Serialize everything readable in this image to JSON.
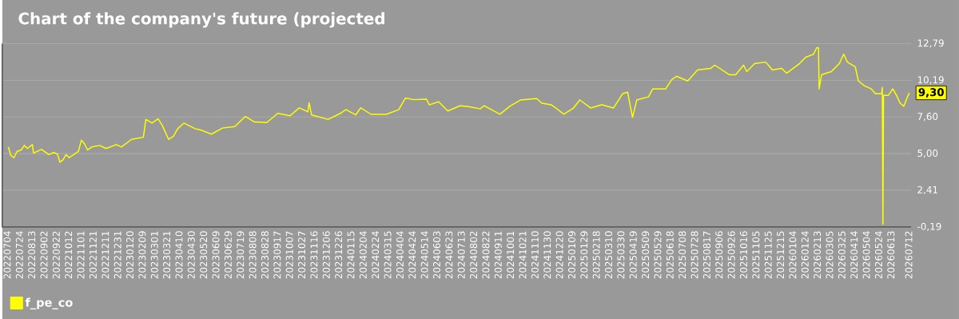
{
  "chart_data": {
    "type": "line",
    "title": "Chart of the company's future (projected",
    "xlim": [
      "2022-06-26",
      "2026-07-16"
    ],
    "ylim": [
      -0.19,
      12.79
    ],
    "yticks": [
      {
        "value": -0.19,
        "label": "-0,19"
      },
      {
        "value": 2.41,
        "label": "2,41"
      },
      {
        "value": 5.0,
        "label": "5,00"
      },
      {
        "value": 7.6,
        "label": "7,60"
      },
      {
        "value": 10.19,
        "label": "10,19"
      },
      {
        "value": 12.79,
        "label": "12,79"
      }
    ],
    "xticks": [
      {
        "value": "2022-07-04",
        "label": "20220704"
      },
      {
        "value": "2022-07-24",
        "label": "20220724"
      },
      {
        "value": "2022-08-13",
        "label": "20220813"
      },
      {
        "value": "2022-09-02",
        "label": "20220902"
      },
      {
        "value": "2022-09-22",
        "label": "20220922"
      },
      {
        "value": "2022-10-12",
        "label": "20221012"
      },
      {
        "value": "2022-11-01",
        "label": "20221101"
      },
      {
        "value": "2022-11-21",
        "label": "20221121"
      },
      {
        "value": "2022-12-11",
        "label": "20221211"
      },
      {
        "value": "2022-12-31",
        "label": "20221231"
      },
      {
        "value": "2023-01-20",
        "label": "20230120"
      },
      {
        "value": "2023-02-09",
        "label": "20230209"
      },
      {
        "value": "2023-03-01",
        "label": "20230301"
      },
      {
        "value": "2023-03-21",
        "label": "20230321"
      },
      {
        "value": "2023-04-10",
        "label": "20230410"
      },
      {
        "value": "2023-04-30",
        "label": "20230430"
      },
      {
        "value": "2023-05-20",
        "label": "20230520"
      },
      {
        "value": "2023-06-09",
        "label": "20230609"
      },
      {
        "value": "2023-06-29",
        "label": "20230629"
      },
      {
        "value": "2023-07-19",
        "label": "20230719"
      },
      {
        "value": "2023-08-08",
        "label": "20230808"
      },
      {
        "value": "2023-08-28",
        "label": "20230828"
      },
      {
        "value": "2023-09-17",
        "label": "20230917"
      },
      {
        "value": "2023-10-07",
        "label": "20231007"
      },
      {
        "value": "2023-10-27",
        "label": "20231027"
      },
      {
        "value": "2023-11-16",
        "label": "20231116"
      },
      {
        "value": "2023-12-06",
        "label": "20231206"
      },
      {
        "value": "2023-12-26",
        "label": "20231226"
      },
      {
        "value": "2024-01-15",
        "label": "20240115"
      },
      {
        "value": "2024-02-04",
        "label": "20240204"
      },
      {
        "value": "2024-02-24",
        "label": "20240224"
      },
      {
        "value": "2024-03-15",
        "label": "20240315"
      },
      {
        "value": "2024-04-04",
        "label": "20240404"
      },
      {
        "value": "2024-04-24",
        "label": "20240424"
      },
      {
        "value": "2024-05-14",
        "label": "20240514"
      },
      {
        "value": "2024-06-03",
        "label": "20240603"
      },
      {
        "value": "2024-06-23",
        "label": "20240623"
      },
      {
        "value": "2024-07-13",
        "label": "20240713"
      },
      {
        "value": "2024-08-02",
        "label": "20240802"
      },
      {
        "value": "2024-08-22",
        "label": "20240822"
      },
      {
        "value": "2024-09-11",
        "label": "20240911"
      },
      {
        "value": "2024-10-01",
        "label": "20241001"
      },
      {
        "value": "2024-10-21",
        "label": "20241021"
      },
      {
        "value": "2024-11-10",
        "label": "20241110"
      },
      {
        "value": "2024-11-30",
        "label": "20241130"
      },
      {
        "value": "2024-12-20",
        "label": "20241220"
      },
      {
        "value": "2025-01-09",
        "label": "20250109"
      },
      {
        "value": "2025-01-29",
        "label": "20250129"
      },
      {
        "value": "2025-02-18",
        "label": "20250218"
      },
      {
        "value": "2025-03-10",
        "label": "20250310"
      },
      {
        "value": "2025-03-30",
        "label": "20250330"
      },
      {
        "value": "2025-04-19",
        "label": "20250419"
      },
      {
        "value": "2025-05-09",
        "label": "20250509"
      },
      {
        "value": "2025-05-29",
        "label": "20250529"
      },
      {
        "value": "2025-06-18",
        "label": "20250618"
      },
      {
        "value": "2025-07-08",
        "label": "20250708"
      },
      {
        "value": "2025-07-28",
        "label": "20250728"
      },
      {
        "value": "2025-08-17",
        "label": "20250817"
      },
      {
        "value": "2025-09-06",
        "label": "20250906"
      },
      {
        "value": "2025-09-26",
        "label": "20250926"
      },
      {
        "value": "2025-10-16",
        "label": "20251016"
      },
      {
        "value": "2025-11-05",
        "label": "20251105"
      },
      {
        "value": "2025-11-25",
        "label": "20251125"
      },
      {
        "value": "2025-12-15",
        "label": "20251215"
      },
      {
        "value": "2026-01-04",
        "label": "20260104"
      },
      {
        "value": "2026-01-24",
        "label": "20260124"
      },
      {
        "value": "2026-02-13",
        "label": "20260213"
      },
      {
        "value": "2026-03-05",
        "label": "20260305"
      },
      {
        "value": "2026-03-25",
        "label": "20260325"
      },
      {
        "value": "2026-04-14",
        "label": "20260414"
      },
      {
        "value": "2026-05-04",
        "label": "20260504"
      },
      {
        "value": "2026-05-24",
        "label": "20260524"
      },
      {
        "value": "2026-06-13",
        "label": "20260613"
      },
      {
        "value": "2026-07-12",
        "label": "20260712"
      }
    ],
    "grid": "y",
    "legend": "bottom left",
    "annotations": [
      {
        "text": "9,30",
        "x": "2026-07-13",
        "y": 9.3
      }
    ],
    "series": [
      {
        "name": "f_pe_co",
        "color": "#ffff00",
        "x": [
          "2022-07-06",
          "2022-07-10",
          "2022-07-15",
          "2022-07-20",
          "2022-07-27",
          "2022-08-01",
          "2022-08-06",
          "2022-08-14",
          "2022-08-16",
          "2022-08-29",
          "2022-09-10",
          "2022-09-18",
          "2022-09-24",
          "2022-09-28",
          "2022-10-03",
          "2022-10-08",
          "2022-10-13",
          "2022-10-28",
          "2022-11-02",
          "2022-11-07",
          "2022-11-12",
          "2022-11-19",
          "2022-12-02",
          "2022-12-12",
          "2022-12-29",
          "2023-01-06",
          "2023-01-23",
          "2023-02-11",
          "2023-02-15",
          "2023-02-25",
          "2023-03-07",
          "2023-03-14",
          "2023-03-24",
          "2023-04-01",
          "2023-04-08",
          "2023-04-18",
          "2023-05-06",
          "2023-05-16",
          "2023-06-02",
          "2023-06-20",
          "2023-07-10",
          "2023-07-27",
          "2023-08-11",
          "2023-08-31",
          "2023-09-18",
          "2023-10-08",
          "2023-10-23",
          "2023-11-06",
          "2023-11-08",
          "2023-11-12",
          "2023-12-09",
          "2023-12-29",
          "2024-01-07",
          "2024-01-23",
          "2024-01-31",
          "2024-02-17",
          "2024-03-13",
          "2024-04-02",
          "2024-04-13",
          "2024-04-27",
          "2024-05-17",
          "2024-05-22",
          "2024-06-06",
          "2024-06-21",
          "2024-07-11",
          "2024-07-26",
          "2024-08-13",
          "2024-08-19",
          "2024-09-14",
          "2024-09-30",
          "2024-10-18",
          "2024-11-13",
          "2024-11-21",
          "2024-12-06",
          "2024-12-14",
          "2024-12-27",
          "2025-01-12",
          "2025-01-22",
          "2025-02-09",
          "2025-02-27",
          "2025-03-18",
          "2025-04-02",
          "2025-04-10",
          "2025-04-15",
          "2025-04-18",
          "2025-04-25",
          "2025-05-14",
          "2025-05-21",
          "2025-06-11",
          "2025-06-21",
          "2025-06-29",
          "2025-07-17",
          "2025-08-02",
          "2025-08-23",
          "2025-08-30",
          "2025-09-23",
          "2025-10-03",
          "2025-10-16",
          "2025-10-21",
          "2025-11-03",
          "2025-11-21",
          "2025-12-02",
          "2025-12-17",
          "2025-12-25",
          "2026-01-15",
          "2026-01-25",
          "2026-02-07",
          "2026-02-12",
          "2026-02-15",
          "2026-02-16",
          "2026-02-20",
          "2026-03-08",
          "2026-03-21",
          "2026-03-28",
          "2026-04-03",
          "2026-04-16",
          "2026-04-21",
          "2026-05-01",
          "2026-05-12",
          "2026-05-19",
          "2026-05-29",
          "2026-05-30",
          "2026-05-31",
          "2026-06-01",
          "2026-06-09",
          "2026-06-16",
          "2026-06-22",
          "2026-06-28",
          "2026-07-04",
          "2026-07-10",
          "2026-07-13"
        ],
        "values": [
          5.47,
          4.87,
          4.71,
          5.15,
          5.26,
          5.58,
          5.36,
          5.64,
          5.04,
          5.3,
          4.93,
          5.08,
          4.97,
          4.39,
          4.56,
          4.93,
          4.71,
          5.15,
          5.95,
          5.69,
          5.26,
          5.47,
          5.58,
          5.36,
          5.64,
          5.47,
          6.01,
          6.16,
          7.42,
          7.16,
          7.46,
          6.98,
          6.01,
          6.23,
          6.77,
          7.16,
          6.77,
          6.66,
          6.38,
          6.81,
          6.92,
          7.63,
          7.24,
          7.2,
          7.85,
          7.68,
          8.24,
          7.96,
          8.6,
          7.74,
          7.42,
          7.85,
          8.11,
          7.74,
          8.24,
          7.78,
          7.78,
          8.11,
          8.93,
          8.82,
          8.86,
          8.45,
          8.67,
          8.02,
          8.39,
          8.32,
          8.17,
          8.39,
          7.79,
          8.35,
          8.8,
          8.9,
          8.57,
          8.46,
          8.23,
          7.79,
          8.23,
          8.8,
          8.23,
          8.46,
          8.23,
          9.24,
          9.35,
          8.23,
          7.56,
          8.8,
          9.02,
          9.58,
          9.58,
          10.25,
          10.47,
          10.14,
          10.92,
          11.03,
          11.26,
          10.58,
          10.58,
          11.26,
          10.81,
          11.37,
          11.48,
          10.92,
          11.03,
          10.69,
          11.37,
          11.81,
          12.04,
          12.49,
          12.49,
          9.58,
          10.58,
          10.81,
          11.37,
          12.04,
          11.48,
          11.14,
          10.14,
          9.8,
          9.58,
          9.24,
          9.24,
          9.69,
          0.0,
          9.13,
          9.13,
          9.58,
          9.13,
          8.57,
          8.35,
          9.02,
          9.3
        ]
      }
    ]
  }
}
